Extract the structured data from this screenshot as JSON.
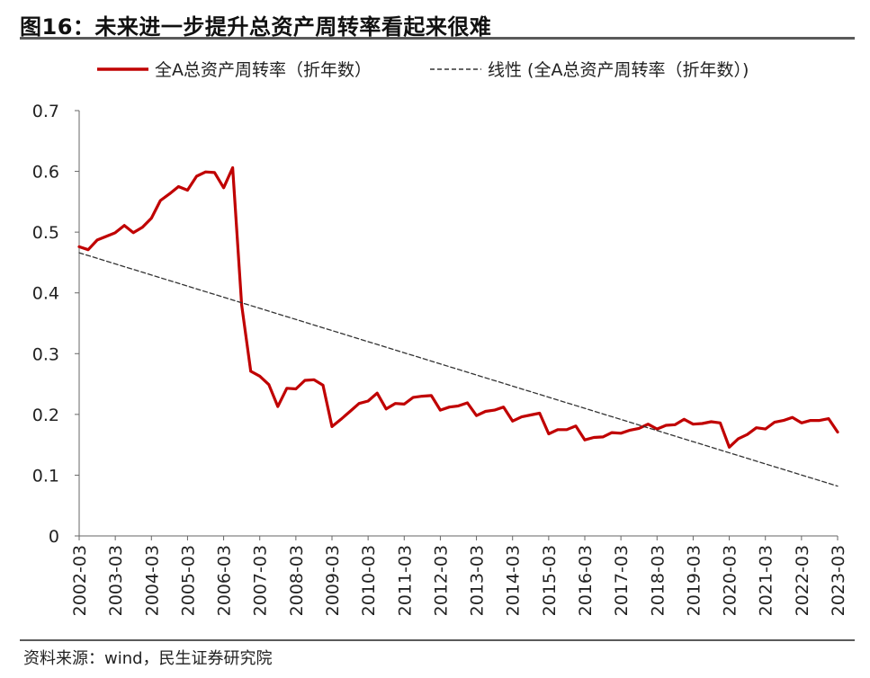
{
  "header": {
    "title": "图16：未来进一步提升总资产周转率看起来很难"
  },
  "footer": {
    "source": "资料来源：wind，民生证券研究院"
  },
  "colors": {
    "main_series": "#c00000",
    "trend": "#333333",
    "axis": "#666666"
  },
  "chart_data": {
    "type": "line",
    "title": "",
    "xlabel": "",
    "ylabel": "",
    "ylim": [
      0,
      0.7
    ],
    "yticks": [
      "0",
      "0.1",
      "0.2",
      "0.3",
      "0.4",
      "0.5",
      "0.6",
      "0.7"
    ],
    "x_tick_labels": [
      "2002-03",
      "2003-03",
      "2004-03",
      "2005-03",
      "2006-03",
      "2007-03",
      "2008-03",
      "2009-03",
      "2010-03",
      "2011-03",
      "2012-03",
      "2013-03",
      "2014-03",
      "2015-03",
      "2016-03",
      "2017-03",
      "2018-03",
      "2019-03",
      "2020-03",
      "2021-03",
      "2022-03",
      "2023-03"
    ],
    "legend_position": "top",
    "grid": false,
    "series": [
      {
        "name": "全A总资产周转率（折年数）",
        "style": "solid",
        "x": [
          "2002-03",
          "2002-06",
          "2002-09",
          "2002-12",
          "2003-03",
          "2003-06",
          "2003-09",
          "2003-12",
          "2004-03",
          "2004-06",
          "2004-09",
          "2004-12",
          "2005-03",
          "2005-06",
          "2005-09",
          "2005-12",
          "2006-03",
          "2006-06",
          "2006-09",
          "2006-12",
          "2007-03",
          "2007-06",
          "2007-09",
          "2007-12",
          "2008-03",
          "2008-06",
          "2008-09",
          "2008-12",
          "2009-03",
          "2009-06",
          "2009-09",
          "2009-12",
          "2010-03",
          "2010-06",
          "2010-09",
          "2010-12",
          "2011-03",
          "2011-06",
          "2011-09",
          "2011-12",
          "2012-03",
          "2012-06",
          "2012-09",
          "2012-12",
          "2013-03",
          "2013-06",
          "2013-09",
          "2013-12",
          "2014-03",
          "2014-06",
          "2014-09",
          "2014-12",
          "2015-03",
          "2015-06",
          "2015-09",
          "2015-12",
          "2016-03",
          "2016-06",
          "2016-09",
          "2016-12",
          "2017-03",
          "2017-06",
          "2017-09",
          "2017-12",
          "2018-03",
          "2018-06",
          "2018-09",
          "2018-12",
          "2019-03",
          "2019-06",
          "2019-09",
          "2019-12",
          "2020-03",
          "2020-06",
          "2020-09",
          "2020-12",
          "2021-03",
          "2021-06",
          "2021-09",
          "2021-12",
          "2022-03",
          "2022-06",
          "2022-09",
          "2022-12",
          "2023-03"
        ],
        "values": [
          0.476,
          0.471,
          0.487,
          0.493,
          0.499,
          0.511,
          0.499,
          0.508,
          0.523,
          0.552,
          0.563,
          0.575,
          0.569,
          0.592,
          0.599,
          0.598,
          0.573,
          0.606,
          0.38,
          0.271,
          0.263,
          0.249,
          0.213,
          0.243,
          0.242,
          0.256,
          0.257,
          0.248,
          0.18,
          0.192,
          0.205,
          0.218,
          0.222,
          0.235,
          0.209,
          0.218,
          0.217,
          0.228,
          0.23,
          0.231,
          0.207,
          0.212,
          0.214,
          0.219,
          0.198,
          0.205,
          0.207,
          0.212,
          0.189,
          0.196,
          0.199,
          0.202,
          0.168,
          0.175,
          0.175,
          0.181,
          0.158,
          0.162,
          0.163,
          0.17,
          0.169,
          0.174,
          0.177,
          0.184,
          0.176,
          0.182,
          0.183,
          0.192,
          0.184,
          0.185,
          0.188,
          0.186,
          0.146,
          0.16,
          0.167,
          0.178,
          0.176,
          0.187,
          0.19,
          0.195,
          0.186,
          0.19,
          0.19,
          0.193,
          0.171
        ]
      },
      {
        "name": "线性 (全A总资产周转率（折年数）)",
        "style": "dashed",
        "x": [
          "2002-03",
          "2023-03"
        ],
        "values": [
          0.466,
          0.082
        ]
      }
    ]
  }
}
